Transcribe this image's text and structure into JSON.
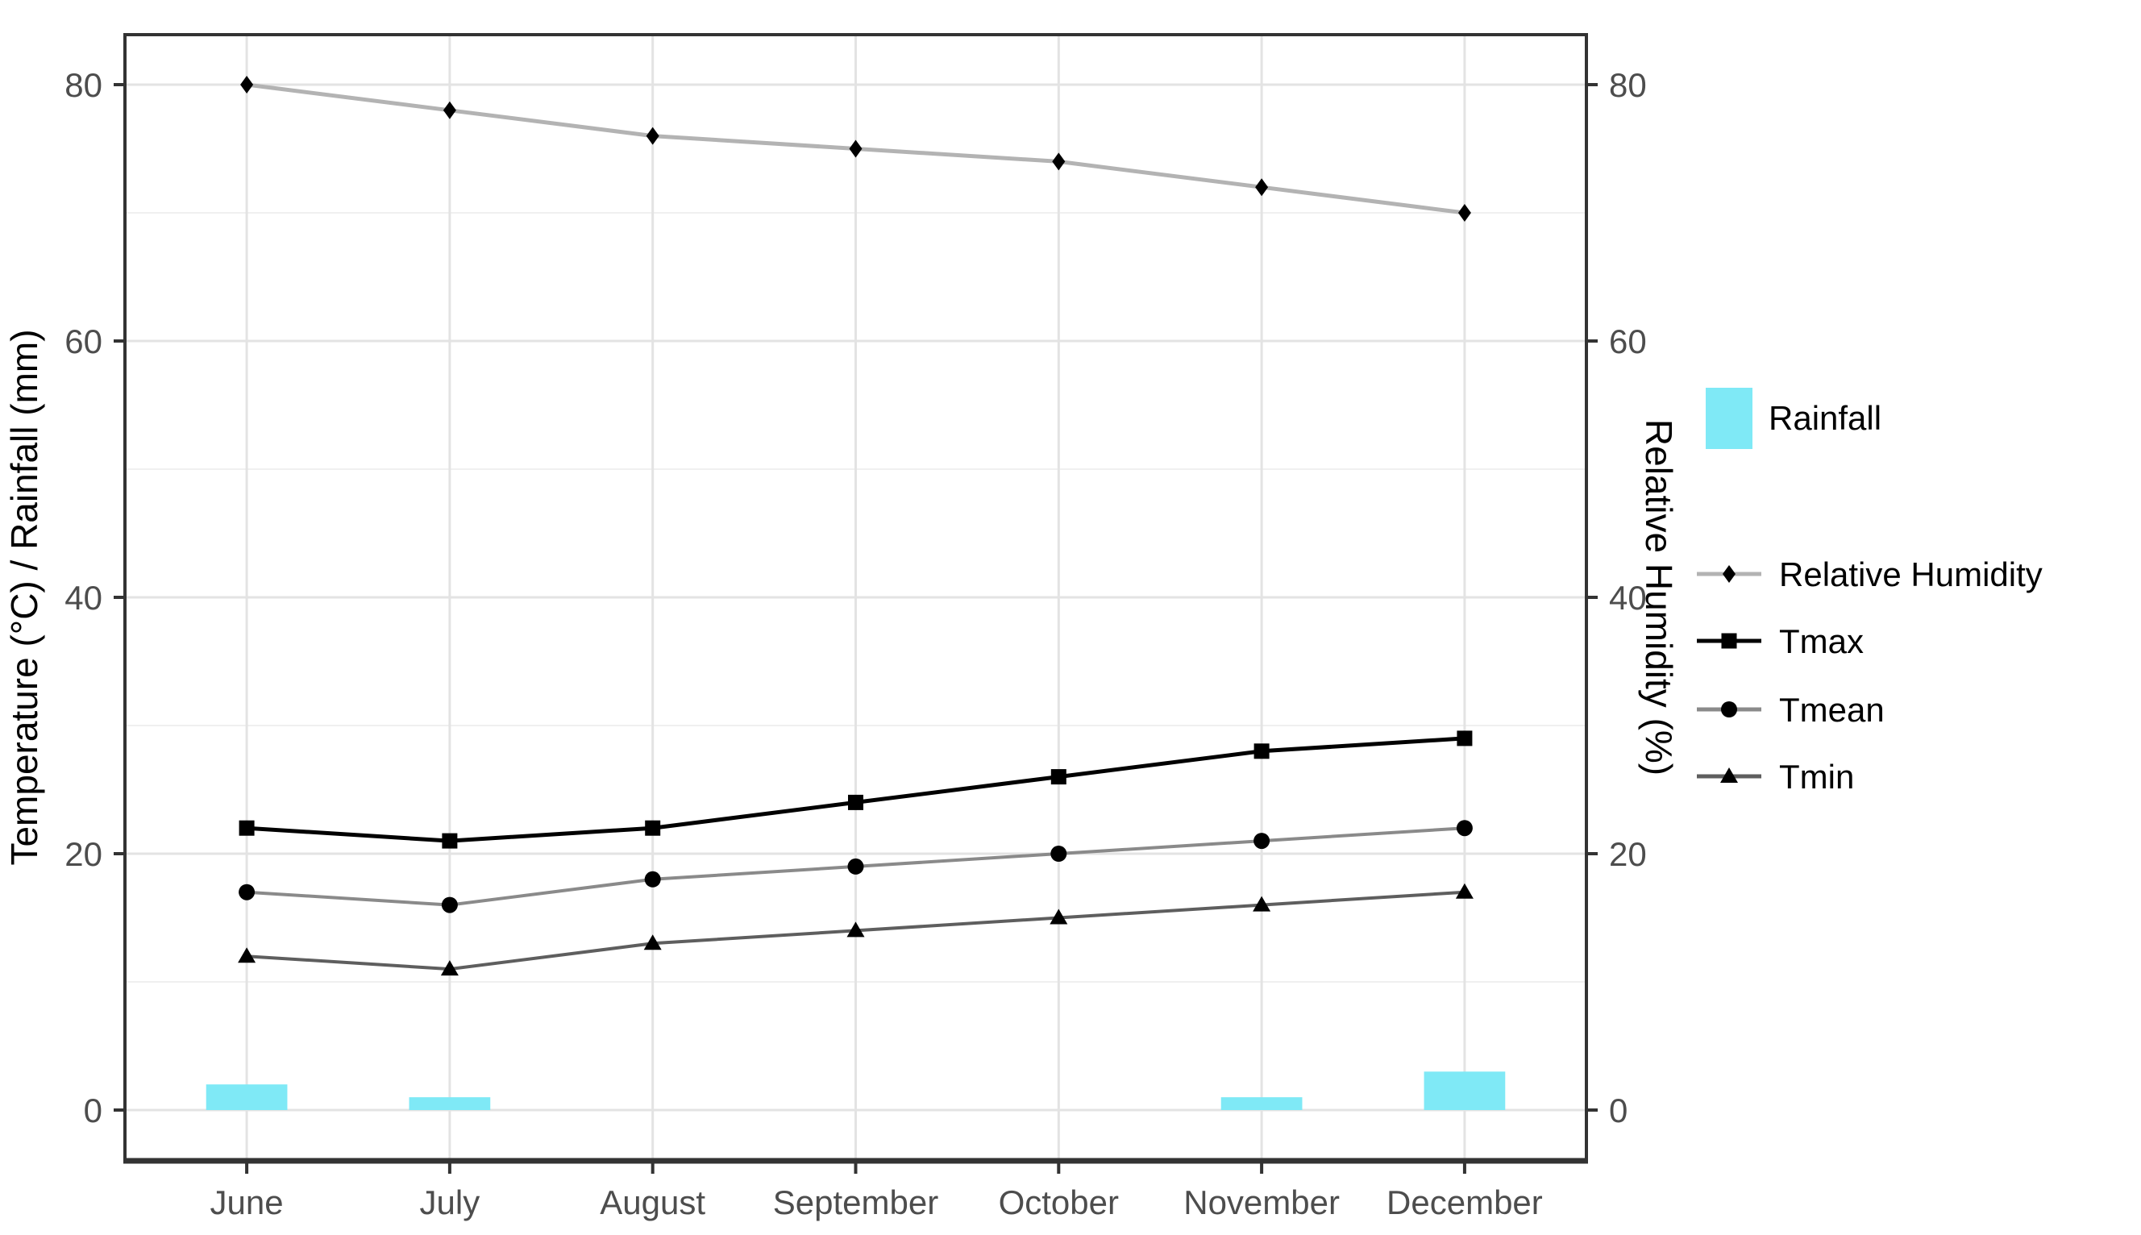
{
  "chart_data": {
    "type": "line+bar",
    "title": "",
    "categories": [
      "June",
      "July",
      "August",
      "September",
      "October",
      "November",
      "December"
    ],
    "series": [
      {
        "name": "Rainfall",
        "type": "bar",
        "axis": "left",
        "values": [
          2,
          1,
          0,
          0,
          0,
          1,
          3
        ],
        "color": "#7FE9F6"
      },
      {
        "name": "Relative Humidity",
        "type": "line",
        "axis": "right",
        "marker": "diamond",
        "values": [
          80,
          78,
          76,
          75,
          74,
          72,
          70
        ],
        "line_color": "#b3b3b3",
        "marker_color": "#000000"
      },
      {
        "name": "Tmax",
        "type": "line",
        "axis": "left",
        "marker": "square",
        "values": [
          22,
          21,
          22,
          24,
          26,
          28,
          29
        ],
        "line_color": "#000000",
        "marker_color": "#000000"
      },
      {
        "name": "Tmean",
        "type": "line",
        "axis": "left",
        "marker": "circle",
        "values": [
          17,
          16,
          18,
          19,
          20,
          21,
          22
        ],
        "line_color": "#8a8a8a",
        "marker_color": "#000000"
      },
      {
        "name": "Tmin",
        "type": "line",
        "axis": "left",
        "marker": "triangle",
        "values": [
          12,
          11,
          13,
          14,
          15,
          16,
          17
        ],
        "line_color": "#5e5e5e",
        "marker_color": "#000000"
      }
    ],
    "ylabel_left": "Temperature (°C) / Rainfall (mm)",
    "ylabel_right": "Relative Humidity (%)",
    "yticks_left": [
      "0",
      "20",
      "40",
      "60",
      "80"
    ],
    "yticks_right": [
      "0",
      "20",
      "40",
      "60",
      "80"
    ],
    "ytick_values": [
      0,
      20,
      40,
      60,
      80
    ],
    "minor_ytick_values": [
      10,
      30,
      50,
      70
    ],
    "ylim": [
      -4,
      84
    ],
    "grid": "horizontal major+minor, vertical major",
    "legend_position": "right"
  },
  "legend": {
    "rainfall": {
      "label": "Rainfall",
      "swatch_color": "#7FE9F6"
    },
    "items": [
      {
        "label": "Relative Humidity",
        "marker": "diamond",
        "line_color": "#b3b3b3"
      },
      {
        "label": "Tmax",
        "marker": "square",
        "line_color": "#000000"
      },
      {
        "label": "Tmean",
        "marker": "circle",
        "line_color": "#8a8a8a"
      },
      {
        "label": "Tmin",
        "marker": "triangle",
        "line_color": "#5e5e5e"
      }
    ]
  },
  "colors": {
    "panel_border": "#333333",
    "grid_major": "#e3e3e3",
    "grid_minor": "#f0f0f0",
    "tick_mark": "#333333",
    "tick_label": "#4d4d4d",
    "axis_title": "#000000",
    "background": "#ffffff"
  }
}
